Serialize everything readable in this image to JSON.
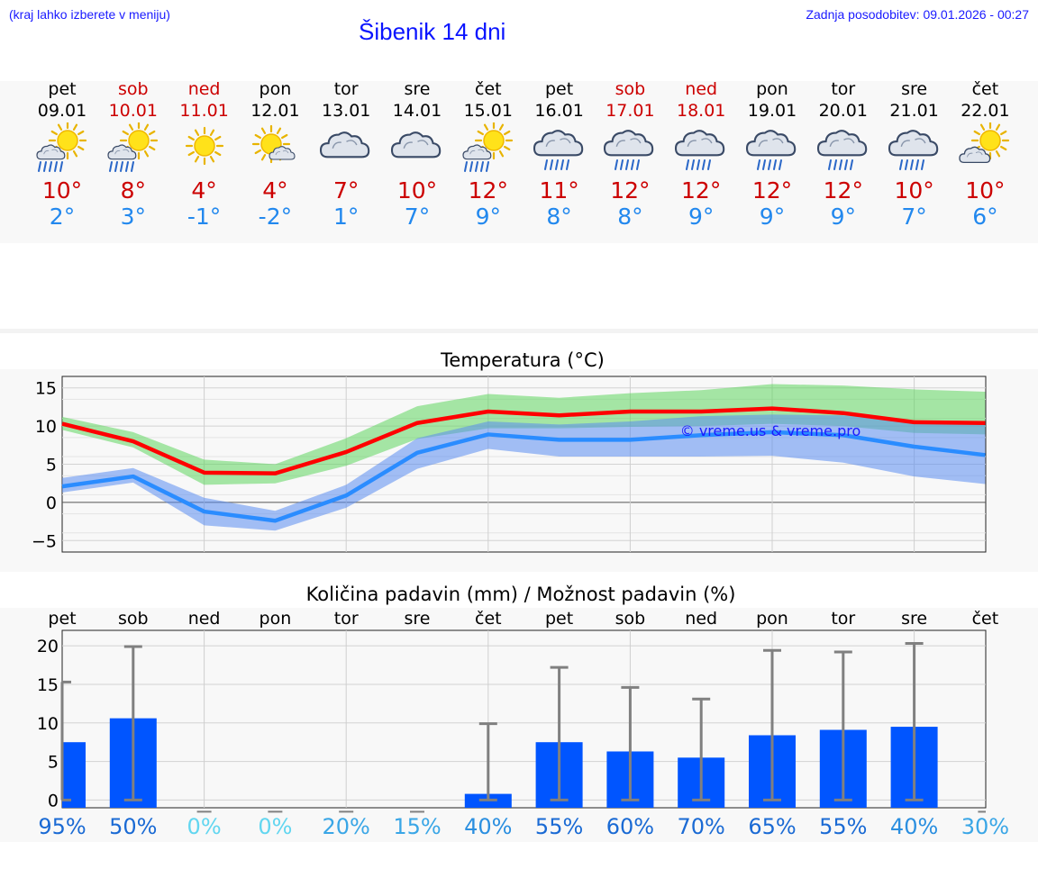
{
  "header": {
    "hint": "(kraj lahko izberete v meniju)",
    "title": "Šibenik 14 dni",
    "updated": "Zadnja posodobitev: 09.01.2026 - 00:27"
  },
  "colors": {
    "link": "#1a1aff",
    "max": "#ff0000",
    "min": "#2a8cff",
    "bar": "#0055ff",
    "weekend": "#cc0000"
  },
  "days": [
    {
      "name": "pet",
      "date": "09.01",
      "weekend": false,
      "icon": "sun-cloud-rain-icon",
      "max": "10°",
      "min": "2°"
    },
    {
      "name": "sob",
      "date": "10.01",
      "weekend": true,
      "icon": "sun-cloud-rain-icon",
      "max": "8°",
      "min": "3°"
    },
    {
      "name": "ned",
      "date": "11.01",
      "weekend": true,
      "icon": "sun-icon",
      "max": "4°",
      "min": "-1°"
    },
    {
      "name": "pon",
      "date": "12.01",
      "weekend": false,
      "icon": "sun-small-cloud-icon",
      "max": "4°",
      "min": "-2°"
    },
    {
      "name": "tor",
      "date": "13.01",
      "weekend": false,
      "icon": "cloud-icon",
      "max": "7°",
      "min": "1°"
    },
    {
      "name": "sre",
      "date": "14.01",
      "weekend": false,
      "icon": "cloud-icon",
      "max": "10°",
      "min": "7°"
    },
    {
      "name": "čet",
      "date": "15.01",
      "weekend": false,
      "icon": "sun-cloud-rain-icon",
      "max": "12°",
      "min": "9°"
    },
    {
      "name": "pet",
      "date": "16.01",
      "weekend": false,
      "icon": "cloud-rain-icon",
      "max": "11°",
      "min": "8°"
    },
    {
      "name": "sob",
      "date": "17.01",
      "weekend": true,
      "icon": "cloud-rain-icon",
      "max": "12°",
      "min": "8°"
    },
    {
      "name": "ned",
      "date": "18.01",
      "weekend": true,
      "icon": "cloud-rain-icon",
      "max": "12°",
      "min": "9°"
    },
    {
      "name": "pon",
      "date": "19.01",
      "weekend": false,
      "icon": "cloud-rain-icon",
      "max": "12°",
      "min": "9°"
    },
    {
      "name": "tor",
      "date": "20.01",
      "weekend": false,
      "icon": "cloud-rain-icon",
      "max": "12°",
      "min": "9°"
    },
    {
      "name": "sre",
      "date": "21.01",
      "weekend": false,
      "icon": "cloud-rain-icon",
      "max": "10°",
      "min": "7°"
    },
    {
      "name": "čet",
      "date": "22.01",
      "weekend": false,
      "icon": "sun-cloud-icon",
      "max": "10°",
      "min": "6°"
    }
  ],
  "chart_data": [
    {
      "type": "line",
      "title": "Temperatura (°C)",
      "watermark": "© vreme.us & vreme.pro",
      "ylim": [
        -6.5,
        16.5
      ],
      "yticks": [
        "15",
        "10",
        "5",
        "0",
        "−5"
      ],
      "ytick_values": [
        15,
        10,
        5,
        0,
        -5
      ],
      "series": [
        {
          "name": "max",
          "values": [
            10.3,
            8.0,
            3.9,
            3.8,
            6.6,
            10.4,
            11.9,
            11.4,
            11.9,
            11.9,
            12.3,
            11.7,
            10.5,
            10.4
          ],
          "band_low": [
            9.5,
            7.2,
            2.3,
            2.5,
            4.8,
            8.3,
            9.7,
            9.7,
            9.9,
            10.0,
            10.3,
            10.0,
            9.1,
            8.9
          ],
          "band_high": [
            11.2,
            9.2,
            5.6,
            5.0,
            8.4,
            12.6,
            14.2,
            13.7,
            14.3,
            14.7,
            15.5,
            15.3,
            14.8,
            14.5
          ]
        },
        {
          "name": "min",
          "values": [
            2.1,
            3.4,
            -1.2,
            -2.4,
            0.9,
            6.5,
            8.9,
            8.2,
            8.2,
            8.8,
            9.2,
            8.8,
            7.3,
            6.2
          ],
          "band_low": [
            1.3,
            2.6,
            -3.0,
            -3.7,
            -0.7,
            4.4,
            7.0,
            6.0,
            6.0,
            6.0,
            6.1,
            5.2,
            3.4,
            2.4
          ],
          "band_high": [
            3.2,
            4.5,
            0.6,
            -1.1,
            2.3,
            8.4,
            10.6,
            10.2,
            10.6,
            11.3,
            11.5,
            11.4,
            10.6,
            10.3
          ]
        }
      ]
    },
    {
      "type": "bar",
      "title": "Količina padavin (mm) / Možnost padavin (%)",
      "categories": [
        "pet",
        "sob",
        "ned",
        "pon",
        "tor",
        "sre",
        "čet",
        "pet",
        "sob",
        "ned",
        "pon",
        "tor",
        "sre",
        "čet"
      ],
      "yticks": [
        "20",
        "15",
        "10",
        "5",
        "0"
      ],
      "ytick_values": [
        20,
        15,
        10,
        5,
        0
      ],
      "ylim": [
        -1,
        22
      ],
      "values": [
        7.5,
        10.6,
        0,
        0,
        0,
        0,
        0.8,
        7.5,
        6.3,
        5.5,
        8.4,
        9.1,
        9.5,
        0
      ],
      "whisker_high": [
        15.3,
        19.9,
        0,
        0,
        0,
        0,
        9.9,
        17.2,
        14.6,
        13.1,
        19.4,
        19.2,
        20.3,
        0
      ],
      "whisker_low": [
        0,
        0,
        0,
        0,
        0,
        0,
        0,
        0,
        0,
        0,
        0,
        0,
        0,
        0
      ],
      "probability": [
        "95%",
        "50%",
        "0%",
        "0%",
        "20%",
        "15%",
        "40%",
        "55%",
        "60%",
        "70%",
        "65%",
        "55%",
        "40%",
        "30%"
      ],
      "probability_colors": [
        "#1a6ad4",
        "#1a6ad4",
        "#62d6f0",
        "#62d6f0",
        "#3aa6e6",
        "#3aa6e6",
        "#2b8fe0",
        "#1a6ad4",
        "#1a6ad4",
        "#1a6ad4",
        "#1a6ad4",
        "#1a6ad4",
        "#2b8fe0",
        "#3aa6e6"
      ]
    }
  ]
}
